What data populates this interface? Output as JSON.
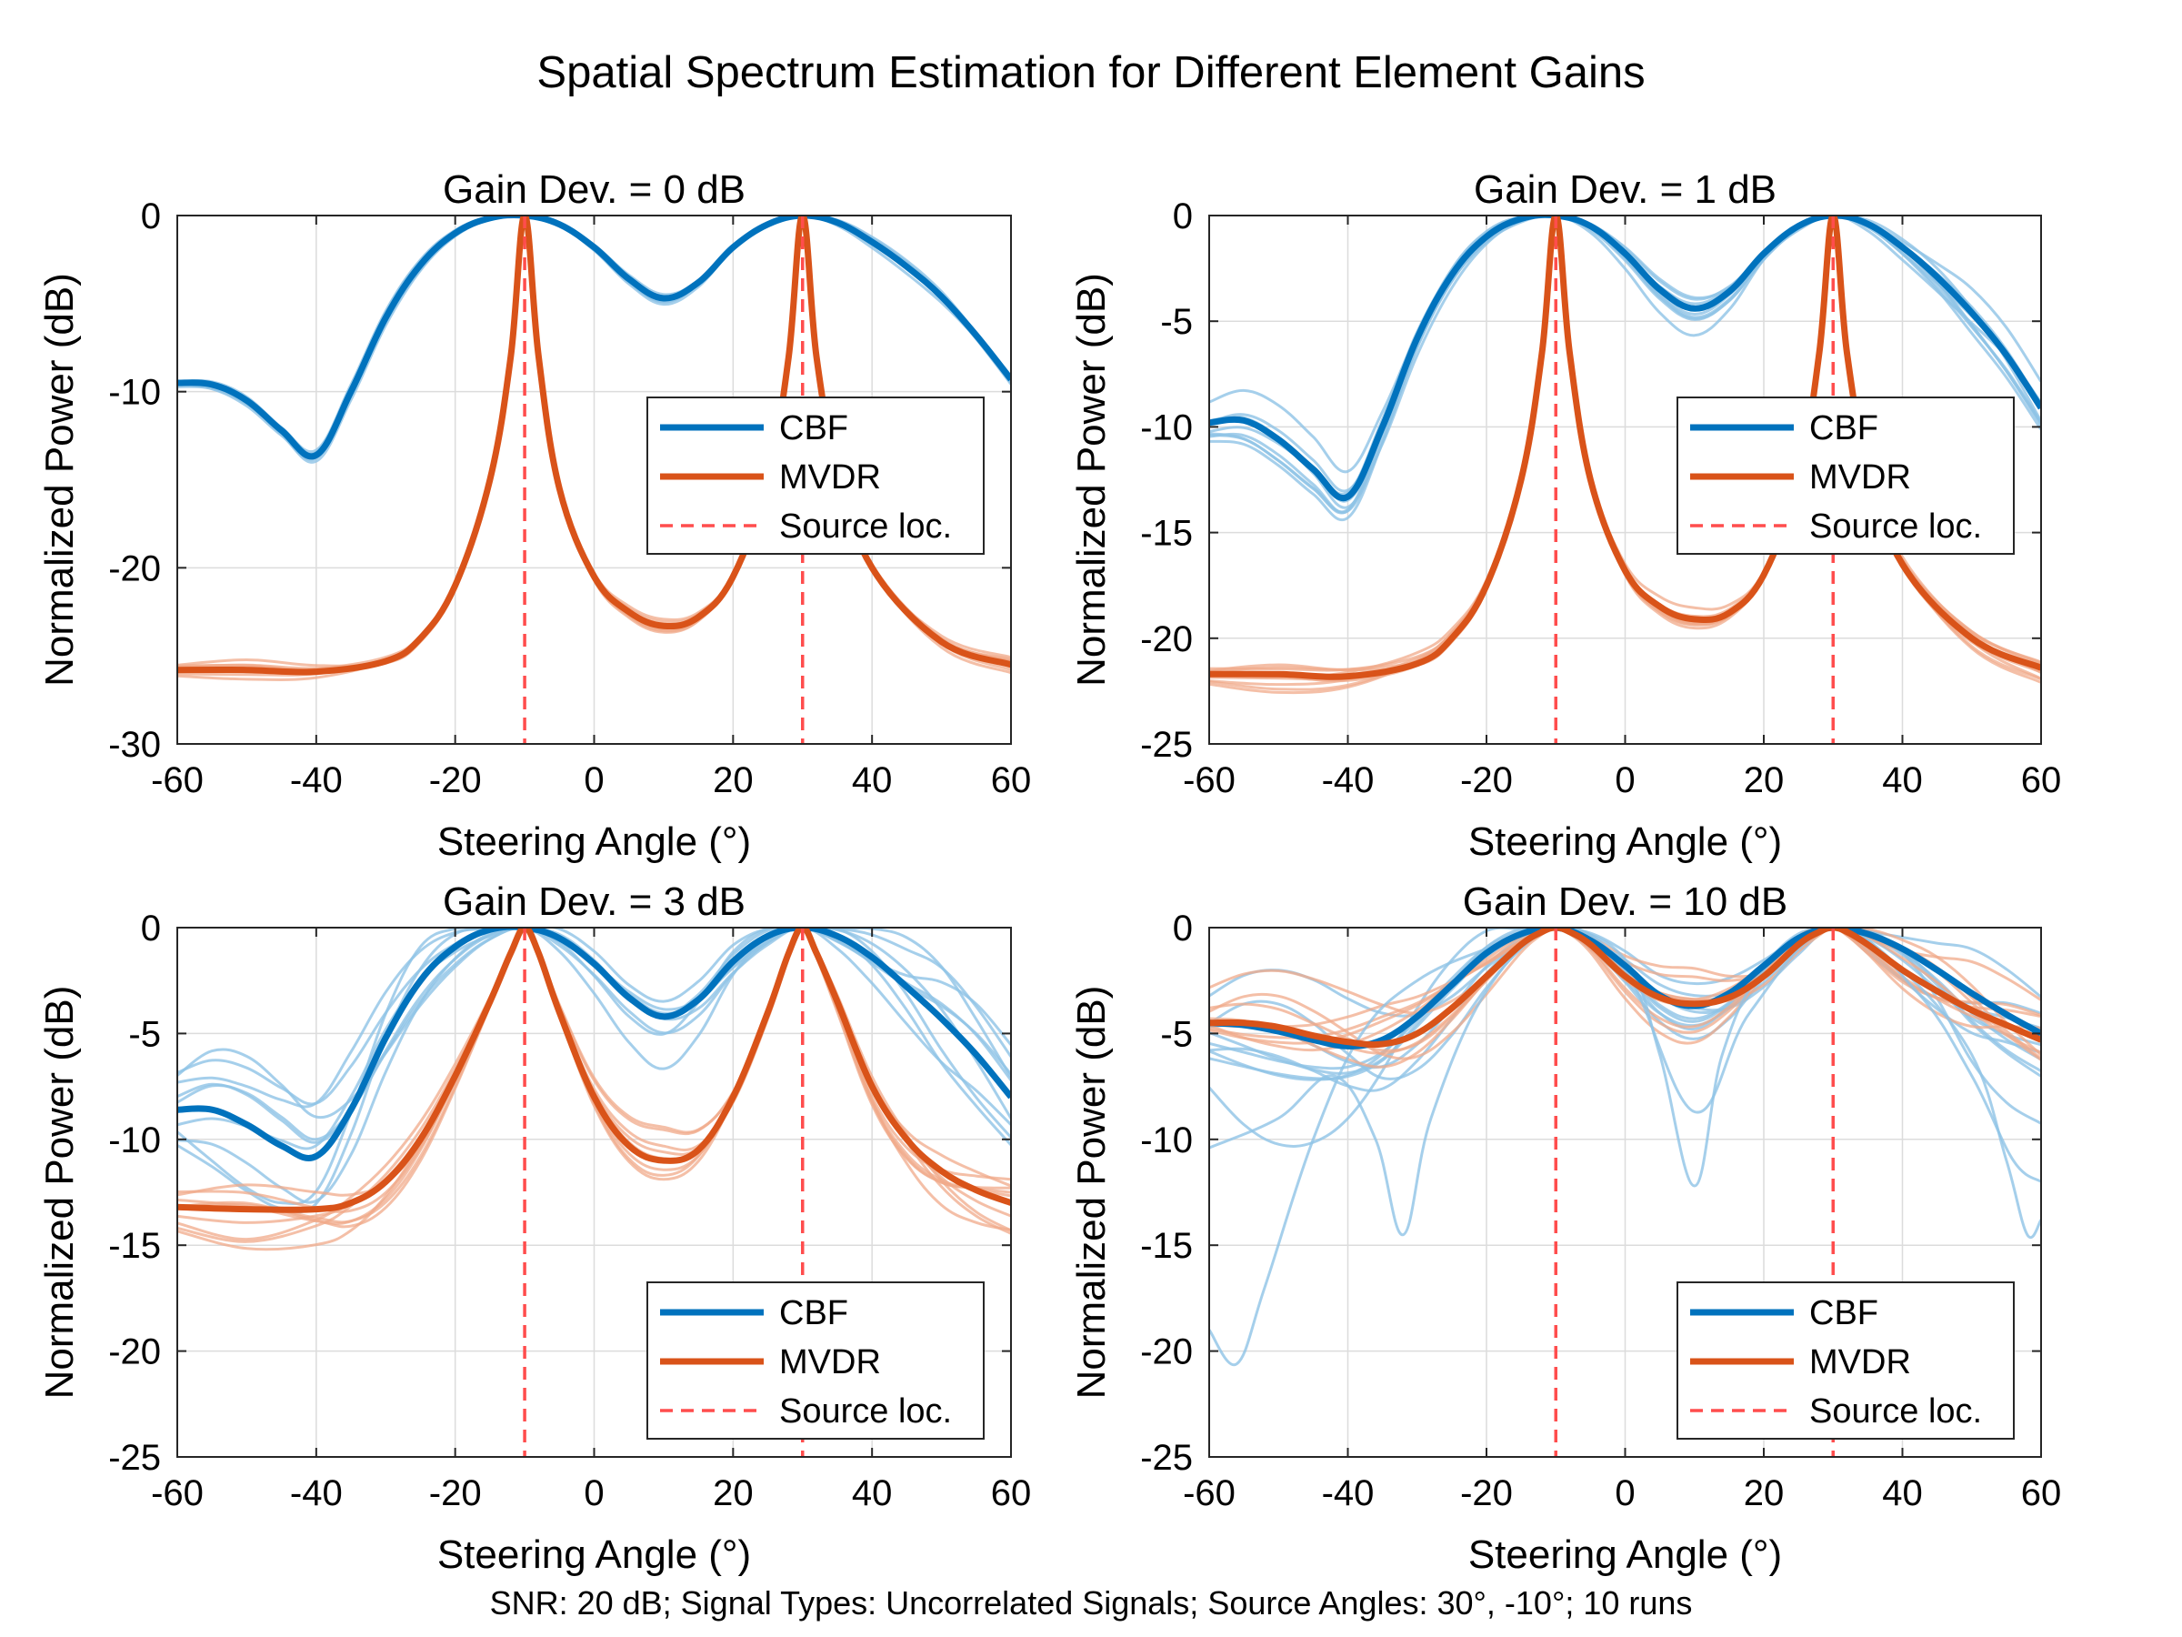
{
  "figure": {
    "title": "Spatial Spectrum Estimation for Different Element Gains",
    "footnote": "SNR: 20 dB; Signal Types: Uncorrelated Signals; Source Angles: 30°, -10°; 10 runs"
  },
  "colors": {
    "cbf": "#0072BD",
    "cbf_light": "#8ec3e6",
    "mvdr": "#D95319",
    "mvdr_light": "#f0a98a",
    "source": "#ff4d4d",
    "grid": "#dcdcdc"
  },
  "chart_data": [
    {
      "type": "line",
      "title": "Gain Dev. = 0 dB",
      "xlabel": "Steering Angle (°)",
      "ylabel": "Normalized Power (dB)",
      "xlim": [
        -60,
        60
      ],
      "ylim": [
        -30,
        0
      ],
      "xticks": [
        -60,
        -40,
        -20,
        0,
        20,
        40,
        60
      ],
      "yticks": [
        -30,
        -20,
        -10,
        0
      ],
      "grid": true,
      "legend_position": "right-middle",
      "source_angles": [
        -10,
        30
      ],
      "series": [
        {
          "name": "CBF",
          "x": [
            -60,
            -55,
            -50,
            -45,
            -40,
            -35,
            -30,
            -25,
            -20,
            -15,
            -10,
            -5,
            0,
            5,
            10,
            15,
            20,
            25,
            30,
            35,
            40,
            45,
            50,
            55,
            60
          ],
          "y": [
            -9.5,
            -9.6,
            -10.5,
            -12.2,
            -13.6,
            -10.0,
            -5.8,
            -2.8,
            -1.0,
            -0.15,
            0,
            -0.5,
            -1.8,
            -3.6,
            -4.7,
            -3.8,
            -1.8,
            -0.5,
            0,
            -0.4,
            -1.5,
            -2.9,
            -4.6,
            -6.8,
            -9.3
          ]
        },
        {
          "name": "MVDR",
          "x": [
            -60,
            -50,
            -40,
            -30,
            -25,
            -20,
            -15,
            -12,
            -10,
            -8,
            -5,
            0,
            5,
            10,
            15,
            20,
            25,
            28,
            30,
            32,
            35,
            40,
            50,
            60
          ],
          "y": [
            -25.8,
            -25.8,
            -25.9,
            -25.3,
            -24.0,
            -21.0,
            -15.0,
            -8.0,
            0,
            -8.0,
            -15.5,
            -20.5,
            -22.5,
            -23.3,
            -22.8,
            -20.5,
            -15.0,
            -8.0,
            0,
            -8.0,
            -14.5,
            -20.0,
            -24.2,
            -25.5
          ]
        },
        {
          "name": "Source loc.",
          "x": [
            -10,
            30
          ],
          "y": [
            0,
            0
          ]
        }
      ]
    },
    {
      "type": "line",
      "title": "Gain Dev. = 1 dB",
      "xlabel": "Steering Angle (°)",
      "ylabel": "Normalized Power (dB)",
      "xlim": [
        -60,
        60
      ],
      "ylim": [
        -25,
        0
      ],
      "xticks": [
        -60,
        -40,
        -20,
        0,
        20,
        40,
        60
      ],
      "yticks": [
        -25,
        -20,
        -15,
        -10,
        -5,
        0
      ],
      "grid": true,
      "legend_position": "right-middle",
      "source_angles": [
        -10,
        30
      ],
      "series": [
        {
          "name": "CBF",
          "x": [
            -60,
            -55,
            -50,
            -45,
            -40,
            -35,
            -30,
            -25,
            -20,
            -15,
            -10,
            -5,
            0,
            5,
            10,
            15,
            20,
            25,
            30,
            35,
            40,
            45,
            50,
            55,
            60
          ],
          "y": [
            -9.8,
            -9.7,
            -10.6,
            -12.0,
            -13.3,
            -10.0,
            -5.8,
            -2.8,
            -1.0,
            -0.15,
            0,
            -0.5,
            -1.8,
            -3.5,
            -4.4,
            -3.6,
            -1.8,
            -0.5,
            0,
            -0.4,
            -1.5,
            -2.9,
            -4.6,
            -6.6,
            -9.1
          ]
        },
        {
          "name": "MVDR",
          "x": [
            -60,
            -50,
            -40,
            -30,
            -25,
            -20,
            -15,
            -12,
            -10,
            -8,
            -5,
            0,
            5,
            10,
            15,
            20,
            25,
            28,
            30,
            32,
            35,
            40,
            50,
            60
          ],
          "y": [
            -21.7,
            -21.7,
            -21.8,
            -21.2,
            -20.0,
            -17.5,
            -12.5,
            -6.5,
            0,
            -6.5,
            -12.5,
            -16.8,
            -18.5,
            -19.1,
            -18.8,
            -17.0,
            -12.5,
            -6.5,
            0,
            -6.5,
            -12.0,
            -16.5,
            -20.0,
            -21.4
          ]
        },
        {
          "name": "Source loc.",
          "x": [
            -10,
            30
          ],
          "y": [
            0,
            0
          ]
        }
      ]
    },
    {
      "type": "line",
      "title": "Gain Dev. = 3 dB",
      "xlabel": "Steering Angle (°)",
      "ylabel": "Normalized Power (dB)",
      "xlim": [
        -60,
        60
      ],
      "ylim": [
        -25,
        0
      ],
      "xticks": [
        -60,
        -40,
        -20,
        0,
        20,
        40,
        60
      ],
      "yticks": [
        -25,
        -20,
        -15,
        -10,
        -5,
        0
      ],
      "grid": true,
      "legend_position": "bottom-right",
      "source_angles": [
        -10,
        30
      ],
      "series": [
        {
          "name": "CBF",
          "x": [
            -60,
            -55,
            -50,
            -45,
            -40,
            -35,
            -30,
            -25,
            -20,
            -15,
            -10,
            -5,
            0,
            5,
            10,
            15,
            20,
            25,
            30,
            35,
            40,
            45,
            50,
            55,
            60
          ],
          "y": [
            -8.6,
            -8.6,
            -9.3,
            -10.3,
            -10.8,
            -8.6,
            -5.2,
            -2.5,
            -0.9,
            -0.1,
            0,
            -0.5,
            -1.7,
            -3.3,
            -4.2,
            -3.4,
            -1.6,
            -0.4,
            0,
            -0.4,
            -1.4,
            -2.8,
            -4.3,
            -6.0,
            -8.0
          ]
        },
        {
          "name": "MVDR",
          "x": [
            -60,
            -50,
            -40,
            -35,
            -30,
            -25,
            -20,
            -15,
            -12,
            -10,
            -8,
            -5,
            0,
            5,
            10,
            15,
            20,
            25,
            28,
            30,
            32,
            35,
            40,
            45,
            50,
            55,
            60
          ],
          "y": [
            -13.2,
            -13.3,
            -13.3,
            -13.0,
            -12.0,
            -10.0,
            -7.0,
            -3.5,
            -1.2,
            0,
            -1.2,
            -4.0,
            -8.0,
            -10.3,
            -11.0,
            -10.5,
            -8.0,
            -4.0,
            -1.2,
            0,
            -1.2,
            -3.5,
            -7.5,
            -10.0,
            -11.5,
            -12.4,
            -13.0
          ]
        },
        {
          "name": "Source loc.",
          "x": [
            -10,
            30
          ],
          "y": [
            0,
            0
          ]
        }
      ]
    },
    {
      "type": "line",
      "title": "Gain Dev. = 10 dB",
      "xlabel": "Steering Angle (°)",
      "ylabel": "Normalized Power (dB)",
      "xlim": [
        -60,
        60
      ],
      "ylim": [
        -25,
        0
      ],
      "xticks": [
        -60,
        -40,
        -20,
        0,
        20,
        40,
        60
      ],
      "yticks": [
        -25,
        -20,
        -15,
        -10,
        -5,
        0
      ],
      "grid": true,
      "legend_position": "bottom-right",
      "source_angles": [
        -10,
        30
      ],
      "series": [
        {
          "name": "CBF",
          "x": [
            -60,
            -55,
            -50,
            -45,
            -40,
            -35,
            -30,
            -25,
            -20,
            -15,
            -10,
            -5,
            0,
            5,
            10,
            15,
            20,
            25,
            30,
            35,
            40,
            45,
            50,
            55,
            60
          ],
          "y": [
            -4.5,
            -4.6,
            -4.9,
            -5.3,
            -5.6,
            -5.3,
            -4.2,
            -2.7,
            -1.2,
            -0.3,
            0,
            -0.6,
            -1.8,
            -3.2,
            -3.7,
            -3.1,
            -1.8,
            -0.5,
            0,
            -0.3,
            -1.0,
            -2.0,
            -3.1,
            -4.1,
            -5.0
          ]
        },
        {
          "name": "MVDR",
          "x": [
            -60,
            -55,
            -50,
            -45,
            -40,
            -35,
            -30,
            -25,
            -20,
            -15,
            -12,
            -10,
            -8,
            -5,
            0,
            5,
            10,
            15,
            20,
            25,
            28,
            30,
            32,
            35,
            40,
            45,
            50,
            55,
            60
          ],
          "y": [
            -4.5,
            -4.5,
            -4.7,
            -5.1,
            -5.4,
            -5.5,
            -5.0,
            -3.8,
            -2.3,
            -0.8,
            -0.2,
            0,
            -0.2,
            -0.8,
            -2.3,
            -3.3,
            -3.6,
            -3.3,
            -2.3,
            -0.8,
            -0.2,
            0,
            -0.2,
            -0.8,
            -2.0,
            -3.0,
            -3.9,
            -4.6,
            -5.3
          ]
        },
        {
          "name": "Source loc.",
          "x": [
            -10,
            30
          ],
          "y": [
            0,
            0
          ]
        }
      ]
    }
  ]
}
